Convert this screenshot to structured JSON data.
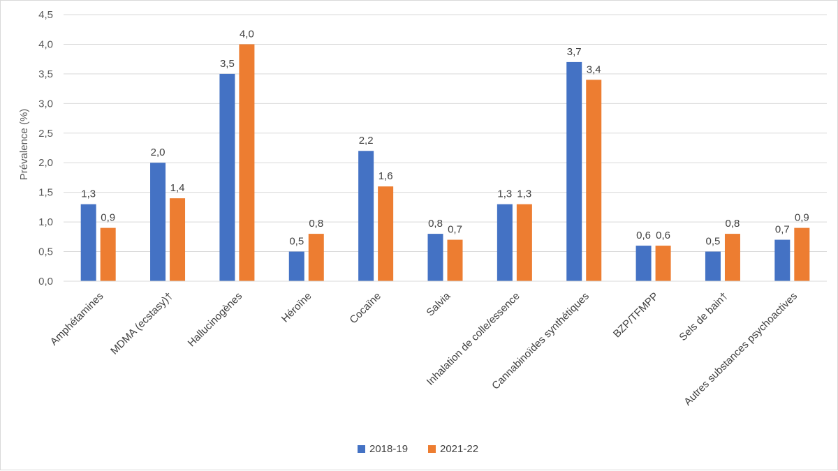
{
  "chart_data": {
    "type": "bar",
    "ylabel": "Prévalence (%)",
    "ylim": [
      0,
      4.5
    ],
    "yticks": [
      "0,0",
      "0,5",
      "1,0",
      "1,5",
      "2,0",
      "2,5",
      "3,0",
      "3,5",
      "4,0",
      "4,5"
    ],
    "categories": [
      "Amphétamines",
      "MDMA (ecstasy)†",
      "Hallucinogènes",
      "Héroïne",
      "Cocaïne",
      "Salvia",
      "Inhalation de colle/essence",
      "Cannabinoïdes synthétiques",
      "BZP/TFMPP",
      "Sels de bain†",
      "Autres substances psychoactives"
    ],
    "series": [
      {
        "name": "2018-19",
        "color": "#4472C4",
        "values": [
          1.3,
          2.0,
          3.5,
          0.5,
          2.2,
          0.8,
          1.3,
          3.7,
          0.6,
          0.5,
          0.7
        ]
      },
      {
        "name": "2021-22",
        "color": "#ED7D31",
        "values": [
          0.9,
          1.4,
          4.0,
          0.8,
          1.6,
          0.7,
          1.3,
          3.4,
          0.6,
          0.8,
          0.9
        ]
      }
    ],
    "grid": true,
    "legend": "bottom-center"
  }
}
